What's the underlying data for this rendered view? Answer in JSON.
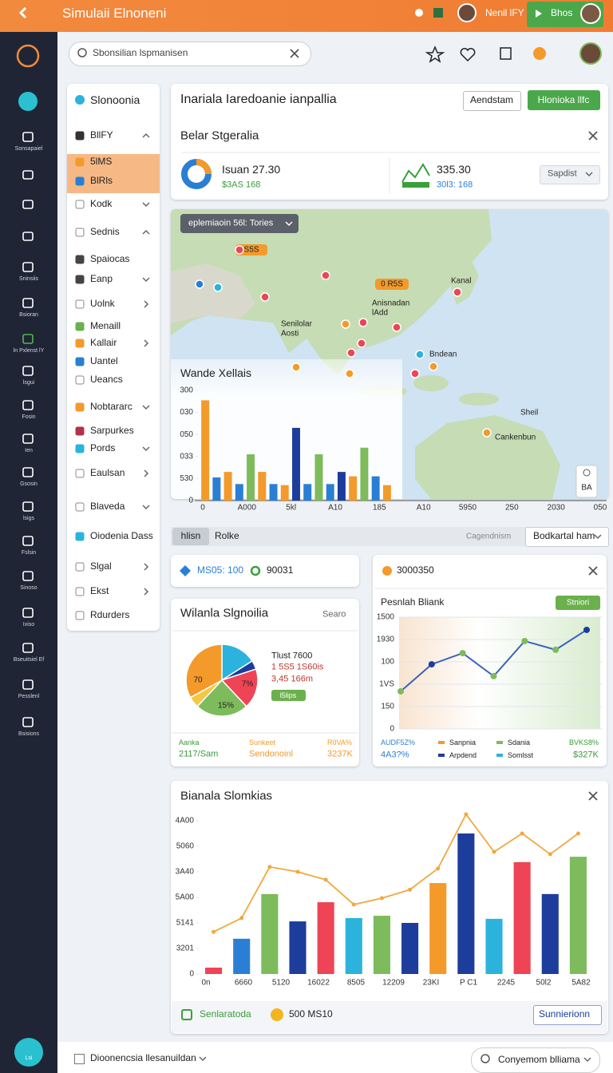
{
  "topbar": {
    "title": "Simulaii Elnoneni",
    "user": "Nenil lFY",
    "button": "Bhos"
  },
  "sidebar": {
    "items": [
      "Sonsapaiel",
      "Sninsiis",
      "Bsioran",
      "ln Pxlenst lY",
      "lsgui",
      "Fosin",
      "Ien",
      "Gsosin",
      "lsigs",
      "Fslsin",
      "Sinoso",
      "Ixiso",
      "Bseuitsiel Ef",
      "Pesslenl",
      "Bsisions"
    ],
    "bottom": "Lsi"
  },
  "search": {
    "placeholder": "Sbonsilian lspmanisen"
  },
  "nav": {
    "title": "Slonoonia",
    "items": [
      "BllFY",
      "5lMS",
      "BlRls",
      "Kodk",
      "Sednis",
      "Spaiocas",
      "Eanp",
      "Uolnk",
      "Menaill",
      "Kallair",
      "Uantel",
      "Ueancs",
      "Nobtararc",
      "Sarpurkes",
      "Pords",
      "Eaulsan",
      "Blaveda",
      "Oiodenia Dass",
      "Slgal",
      "Ekst",
      "Rdurders"
    ]
  },
  "header_card": {
    "title": "Inariala Iaredoanie ianpallia",
    "button_outline": "Aendstam",
    "button_primary": "Hlonioka llfc",
    "section": "Belar Stgeralia",
    "stat1": {
      "label": "Isuan 27.30",
      "sub": "$3AS 168"
    },
    "stat2": {
      "label": "335.30",
      "sub": "30l3: 168"
    },
    "dropdown": "Sapdist"
  },
  "map_panel": {
    "dropdown": "eplemiaoin 56l: Tories",
    "badges": [
      "S5S",
      "0 R5S"
    ],
    "labels": [
      "Kanal",
      "Anisnadan lAdd",
      "Senilolar Aosti",
      "Bndean",
      "Cankenbun",
      "Sheil"
    ],
    "zoom_label": "BA",
    "chart": {
      "type": "bar",
      "title": "Wande Xellais",
      "values": [
        455,
        105,
        130,
        75,
        210,
        130,
        75,
        70,
        330,
        75,
        210,
        75,
        130,
        110,
        240,
        110,
        70
      ],
      "colors": [
        "#f39a2b",
        "#2a7fd4",
        "#f39a2b",
        "#2a7fd4",
        "#7dbb5c",
        "#f39a2b",
        "#2a7fd4",
        "#f39a2b",
        "#1c3d9c",
        "#2a7fd4",
        "#7dbb5c",
        "#2a7fd4",
        "#1c3d9c",
        "#f39a2b",
        "#7dbb5c",
        "#2a7fd4",
        "#f39a2b"
      ],
      "x_labels": [
        "0",
        "A000",
        "5kl",
        "A10",
        "185",
        "A10",
        "5950",
        "250",
        "2030",
        "050"
      ],
      "ylim": [
        0,
        500
      ],
      "yticks": [
        0,
        {
          "value": 100,
          "label": "530"
        },
        {
          "value": 200,
          "label": "033"
        },
        {
          "value": 300,
          "label": "050"
        },
        {
          "value": 400,
          "label": "030"
        },
        {
          "value": 500,
          "label": "300"
        }
      ]
    }
  },
  "tabs": {
    "items": [
      "hlisn",
      "Rolke"
    ],
    "right_label": "Cagendnism",
    "dropdown": "Bodkartal ham"
  },
  "mini_card": {
    "item1": "MS05: 100",
    "item2": "90031"
  },
  "pie_card": {
    "title": "Wilanla Slgnoilia",
    "link": "Searo",
    "legend": [
      "Tlust 7600",
      "1 5S5 1S60is",
      "3,45 166m"
    ],
    "badge": "l5lips",
    "chart": {
      "type": "pie",
      "values": [
        16,
        4,
        18,
        24,
        5,
        33
      ],
      "colors": [
        "#2bb3dd",
        "#1c3d9c",
        "#ee4455",
        "#7dbb5c",
        "#f3c842",
        "#f39a2b"
      ],
      "annotations": [
        "70",
        "7%",
        "15%"
      ]
    },
    "footer": [
      {
        "top": "Aanka",
        "bottom": "2117/Sam"
      },
      {
        "top": "Sunkeet",
        "bottom": "Sendonoinl"
      },
      {
        "top": "R0VA%",
        "bottom": "3237K"
      }
    ]
  },
  "line_card": {
    "header": "3000350",
    "title": "Pesnlah Bliank",
    "badge": "Stniori",
    "chart": {
      "type": "line",
      "categories": [
        null,
        null,
        null,
        null,
        null,
        null,
        null
      ],
      "values": [
        168,
        289,
        339,
        236,
        393,
        354,
        443
      ],
      "color": "#3a62b8",
      "marker_colors": [
        "#7dbb5c",
        "#1c3d9c",
        "#7dbb5c",
        "#7dbb5c",
        "#7dbb5c",
        "#7dbb5c",
        "#1c3d9c"
      ],
      "ylim": [
        0,
        500
      ],
      "yticks": [
        0,
        {
          "value": 100,
          "label": "150"
        },
        {
          "value": 200,
          "label": "1VS"
        },
        {
          "value": 300,
          "label": "100"
        },
        {
          "value": 400,
          "label": "1930"
        },
        {
          "value": 500,
          "label": "1500"
        }
      ],
      "grid": true
    },
    "legend": [
      "Sanpnia",
      "Arpdend",
      "Sdania",
      "Somlsst"
    ],
    "footer": [
      {
        "top": "AUDF5Z%",
        "bottom": "4A3?%"
      },
      {
        "top": "BVKS8%",
        "bottom": "$327K"
      }
    ]
  },
  "combo_card": {
    "title": "Bianala Slomkias",
    "chart": {
      "type": "combo",
      "x_labels": [
        "0n",
        "6660",
        "5120",
        "16022",
        "8505",
        "12209",
        "23KI",
        "P C1",
        "2245",
        "50l2",
        "5A82"
      ],
      "series": [
        {
          "type": "bar",
          "values": [
            25,
            138,
            313,
            206,
            281,
            219,
            228,
            200,
            356,
            550,
            216,
            438,
            313,
            459
          ],
          "colors": [
            "#ee4455",
            "#2a7fd4",
            "#7dbb5c",
            "#1c3d9c",
            "#ee4455",
            "#2bb3dd",
            "#7dbb5c",
            "#1c3d9c",
            "#f39a2b",
            "#1c3d9c",
            "#2bb3dd",
            "#ee4455",
            "#1c3d9c",
            "#7dbb5c"
          ]
        },
        {
          "type": "line",
          "values": [
            165,
            219,
            419,
            400,
            369,
            272,
            297,
            330,
            413,
            625,
            478,
            550,
            469,
            550
          ],
          "color": "#f0a840"
        }
      ],
      "ylim": [
        0,
        650
      ],
      "yticks": [
        0,
        {
          "value": 100,
          "label": "3201"
        },
        {
          "value": 200,
          "label": "5141"
        },
        {
          "value": 300,
          "label": "5A00"
        },
        {
          "value": 400,
          "label": "3A40"
        },
        {
          "value": 500,
          "label": "5060"
        },
        {
          "value": 600,
          "label": "4A00"
        }
      ]
    },
    "footer": {
      "label": "Senlaratoda",
      "badge_text": "500 MS10",
      "dropdown": "Sunnierionn"
    }
  },
  "footer": {
    "checkbox": "Dioonencsia llesanuildan",
    "right": "Conyemom blliama"
  }
}
